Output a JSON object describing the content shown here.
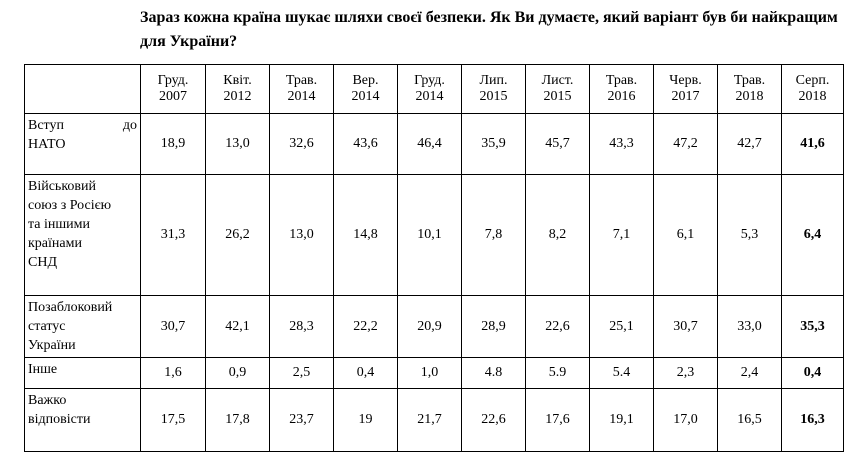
{
  "title": "Зараз кожна країна шукає шляхи своєї безпеки. Як Ви думаєте, який варіант був би найкращим для України?",
  "table": {
    "corner": "",
    "columns": [
      [
        "Груд.",
        "2007"
      ],
      [
        "Квіт.",
        "2012"
      ],
      [
        "Трав.",
        "2014"
      ],
      [
        "Вер.",
        "2014"
      ],
      [
        "Груд.",
        "2014"
      ],
      [
        "Лип.",
        "2015"
      ],
      [
        "Лист.",
        "2015"
      ],
      [
        "Трав.",
        "2016"
      ],
      [
        "Черв.",
        "2017"
      ],
      [
        "Трав.",
        "2018"
      ],
      [
        "Серп.",
        "2018"
      ]
    ],
    "rows": [
      {
        "label": [
          "Вступ до",
          "НАТО"
        ],
        "values": [
          "18,9",
          "13,0",
          "32,6",
          "43,6",
          "46,4",
          "35,9",
          "45,7",
          "43,3",
          "47,2",
          "42,7",
          "41,6"
        ]
      },
      {
        "label": [
          "Військовий",
          "союз з Росією",
          "та іншими",
          "країнами",
          "СНД"
        ],
        "values": [
          "31,3",
          "26,2",
          "13,0",
          "14,8",
          "10,1",
          "7,8",
          "8,2",
          "7,1",
          "6,1",
          "5,3",
          "6,4"
        ]
      },
      {
        "label": [
          "Позаблоковий",
          "статус",
          "України"
        ],
        "values": [
          "30,7",
          "42,1",
          "28,3",
          "22,2",
          "20,9",
          "28,9",
          "22,6",
          "25,1",
          "30,7",
          "33,0",
          "35,3"
        ]
      },
      {
        "label": [
          "Інше"
        ],
        "values": [
          "1,6",
          "0,9",
          "2,5",
          "0,4",
          "1,0",
          "4.8",
          "5.9",
          "5.4",
          "2,3",
          "2,4",
          "0,4"
        ]
      },
      {
        "label": [
          "Важко",
          "відповісти"
        ],
        "values": [
          "17,5",
          "17,8",
          "23,7",
          "19",
          "21,7",
          "22,6",
          "17,6",
          "19,1",
          "17,0",
          "16,5",
          "16,3"
        ]
      }
    ]
  }
}
